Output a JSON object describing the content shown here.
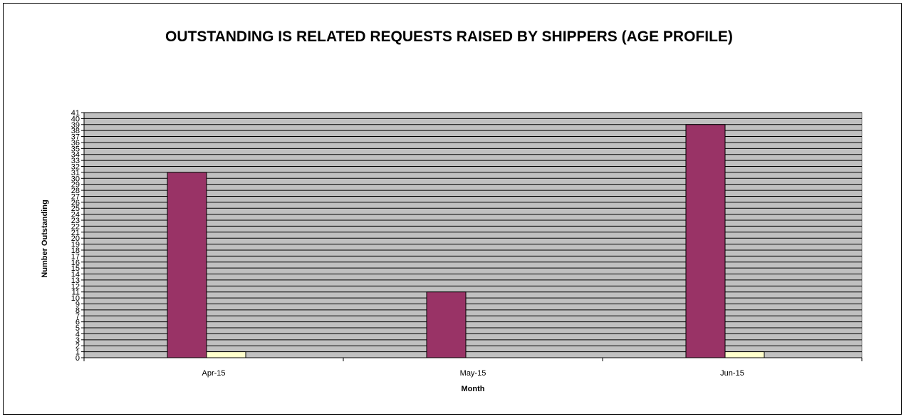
{
  "chart_data": {
    "type": "bar",
    "title": "OUTSTANDING IS RELATED REQUESTS RAISED BY SHIPPERS (AGE PROFILE)",
    "xlabel": "Month",
    "ylabel": "Number  Outstanding",
    "categories": [
      "Apr-15",
      "May-15",
      "Jun-15"
    ],
    "series": [
      {
        "values": [
          31,
          11,
          39
        ],
        "color": "#993366"
      },
      {
        "values": [
          1,
          0,
          1
        ],
        "color": "#ffffcc"
      }
    ],
    "ylim": [
      0,
      41
    ],
    "ytick_step": 1,
    "grid": true,
    "plot_background": "#c0c0c0"
  }
}
